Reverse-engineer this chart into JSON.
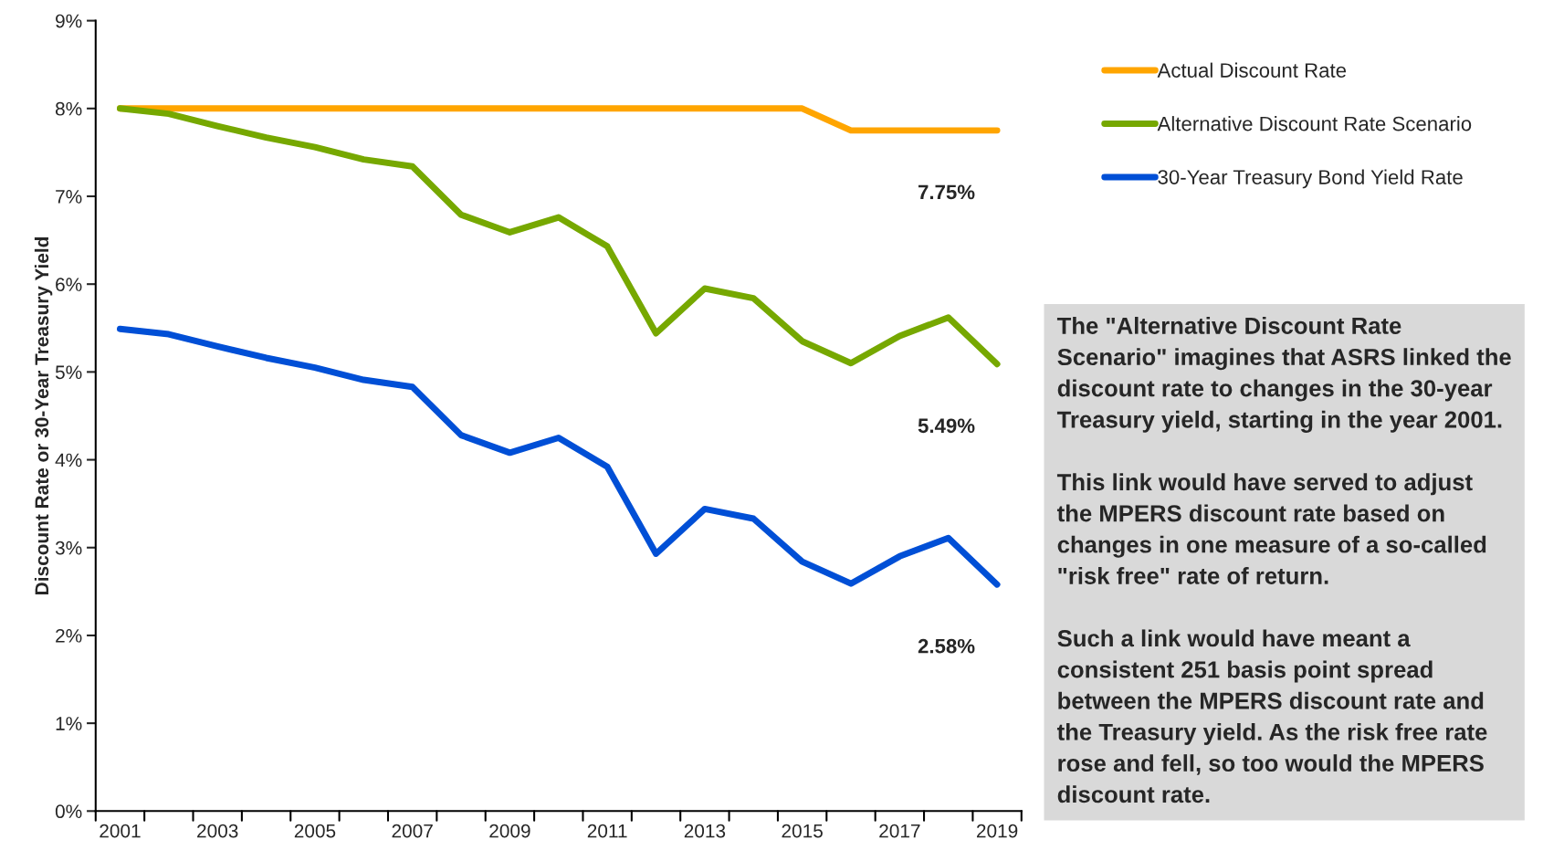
{
  "chart_data": {
    "type": "line",
    "categories": [
      "2001",
      null,
      "2003",
      null,
      "2005",
      null,
      "2007",
      null,
      "2009",
      null,
      "2011",
      null,
      "2013",
      null,
      "2015",
      null,
      "2017",
      null,
      "2019"
    ],
    "series": [
      {
        "name": "Actual Discount Rate",
        "color": "#ffa500",
        "values": [
          8.0,
          8.0,
          8.0,
          8.0,
          8.0,
          8.0,
          8.0,
          8.0,
          8.0,
          8.0,
          8.0,
          8.0,
          8.0,
          8.0,
          8.0,
          7.75,
          7.75,
          7.75,
          7.75
        ]
      },
      {
        "name": "Alternative Discount Rate Scenario",
        "color": "#76a800",
        "values": [
          8.0,
          7.94,
          7.8,
          7.67,
          7.56,
          7.42,
          7.34,
          6.79,
          6.59,
          6.76,
          6.43,
          5.44,
          5.95,
          5.84,
          5.35,
          5.1,
          5.41,
          5.62,
          5.09
        ]
      },
      {
        "name": "30-Year Treasury Bond Yield Rate",
        "color": "#004fd6",
        "values": [
          5.49,
          5.43,
          5.29,
          5.16,
          5.05,
          4.91,
          4.83,
          4.28,
          4.08,
          4.25,
          3.92,
          2.93,
          3.44,
          3.33,
          2.84,
          2.59,
          2.9,
          3.11,
          2.58
        ]
      }
    ],
    "ylabel": "Discount Rate or 30-Year Treasury Yield",
    "ylim": [
      0,
      9
    ],
    "yticks": [
      {
        "value": 0,
        "label": "0%"
      },
      {
        "value": 1,
        "label": "1%"
      },
      {
        "value": 2,
        "label": "2%"
      },
      {
        "value": 3,
        "label": "3%"
      },
      {
        "value": 4,
        "label": "4%"
      },
      {
        "value": 5,
        "label": "5%"
      },
      {
        "value": 6,
        "label": "6%"
      },
      {
        "value": 7,
        "label": "7%"
      },
      {
        "value": 8,
        "label": "8%"
      },
      {
        "value": 9,
        "label": "9%"
      }
    ],
    "annotations": [
      {
        "text": "7.75%",
        "x": "2019",
        "y": 7.75
      },
      {
        "text": "5.49%",
        "x": "2019",
        "y": 5.09
      },
      {
        "text": "2.58%",
        "x": "2019",
        "y": 2.58
      },
      "The \"Alternative Discount Rate\nScenario\" imagines that ASRS linked the\ndiscount rate to changes in the 30-year\nTreasury yield, starting in the year 2001.\n\nThis link would have served to adjust\nthe MPERS discount rate based on\nchanges in one measure of a so-called\n\"risk free\" rate of return.\n\nSuch a link would have meant a\nconsistent 251 basis point spread\nbetween the MPERS discount rate and\nthe Treasury yield. As the risk free rate\nrose and fell, so too would the MPERS\ndiscount rate."
    ],
    "grid": false,
    "legend": "right",
    "marker": "none",
    "line_style": "solid"
  }
}
